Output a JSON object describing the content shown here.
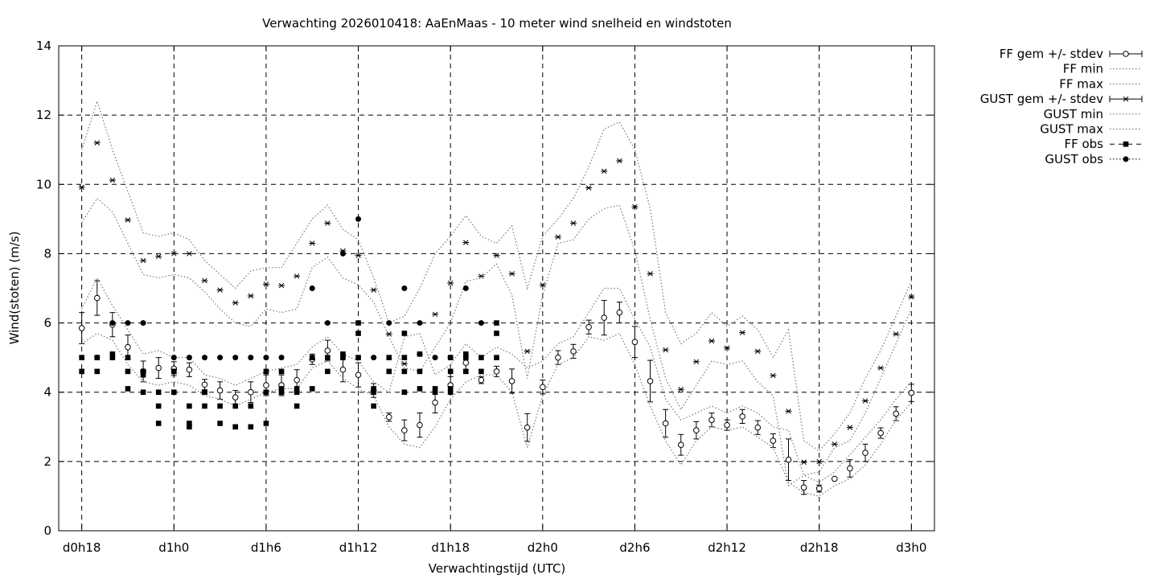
{
  "chart_data": {
    "type": "scatter",
    "title": "Verwachting 2026010418: AaEnMaas - 10 meter wind snelheid en windstoten",
    "xlabel": "Verwachtingstijd (UTC)",
    "ylabel": "Wind(stoten) (m/s)",
    "ylim": [
      0,
      14
    ],
    "xlim": [
      -1.5,
      55.5
    ],
    "yticks": [
      0,
      2,
      4,
      6,
      8,
      10,
      12,
      14
    ],
    "xticks": [
      {
        "x": 0,
        "label": "d0h18"
      },
      {
        "x": 6,
        "label": "d1h0"
      },
      {
        "x": 12,
        "label": "d1h6"
      },
      {
        "x": 18,
        "label": "d1h12"
      },
      {
        "x": 24,
        "label": "d1h18"
      },
      {
        "x": 30,
        "label": "d2h0"
      },
      {
        "x": 36,
        "label": "d2h6"
      },
      {
        "x": 42,
        "label": "d2h12"
      },
      {
        "x": 48,
        "label": "d2h18"
      },
      {
        "x": 54,
        "label": "d3h0"
      }
    ],
    "grid": true,
    "legend_position": "outside-right",
    "series": [
      {
        "name": "FF gem +/- stdev",
        "style": "errorbar-circle",
        "x": [
          0,
          1,
          2,
          3,
          4,
          5,
          6,
          7,
          8,
          9,
          10,
          11,
          12,
          13,
          14,
          15,
          16,
          17,
          18,
          19,
          20,
          21,
          22,
          23,
          24,
          25,
          26,
          27,
          28,
          29,
          30,
          31,
          32,
          33,
          34,
          35,
          36,
          37,
          38,
          39,
          40,
          41,
          42,
          43,
          44,
          45,
          46,
          47,
          48,
          49,
          50,
          51,
          52,
          53,
          54
        ],
        "y": [
          5.85,
          6.72,
          5.95,
          5.3,
          4.6,
          4.7,
          4.68,
          4.65,
          4.22,
          4.05,
          3.85,
          4.0,
          4.2,
          4.2,
          4.35,
          4.95,
          5.2,
          4.65,
          4.5,
          4.05,
          3.28,
          2.9,
          3.05,
          3.7,
          4.2,
          4.85,
          4.35,
          4.6,
          4.32,
          2.98,
          4.15,
          5.0,
          5.18,
          5.88,
          6.15,
          6.3,
          5.45,
          4.32,
          3.1,
          2.48,
          2.9,
          3.2,
          3.05,
          3.3,
          2.98,
          2.6,
          2.05,
          1.25,
          1.22,
          1.5,
          1.8,
          2.25,
          2.82,
          3.38,
          3.98
        ],
        "err": [
          0.45,
          0.5,
          0.35,
          0.35,
          0.3,
          0.3,
          0.2,
          0.2,
          0.15,
          0.25,
          0.2,
          0.3,
          0.3,
          0.3,
          0.3,
          0.15,
          0.3,
          0.35,
          0.35,
          0.2,
          0.12,
          0.3,
          0.35,
          0.3,
          0.25,
          0.2,
          0.1,
          0.15,
          0.35,
          0.4,
          0.2,
          0.2,
          0.2,
          0.2,
          0.5,
          0.3,
          0.45,
          0.6,
          0.4,
          0.3,
          0.25,
          0.2,
          0.15,
          0.2,
          0.2,
          0.2,
          0.6,
          0.2,
          0.1,
          0.0,
          0.25,
          0.25,
          0.15,
          0.2,
          0.25
        ]
      },
      {
        "name": "FF min",
        "style": "line",
        "x": [
          0,
          1,
          2,
          3,
          4,
          5,
          6,
          7,
          8,
          9,
          10,
          11,
          12,
          13,
          14,
          15,
          16,
          17,
          18,
          19,
          20,
          21,
          22,
          23,
          24,
          25,
          26,
          27,
          28,
          29,
          30,
          31,
          32,
          33,
          34,
          35,
          36,
          37,
          38,
          39,
          40,
          41,
          42,
          43,
          44,
          45,
          46,
          47,
          48,
          49,
          50,
          51,
          52,
          53,
          54
        ],
        "y": [
          5.4,
          5.7,
          5.5,
          4.8,
          4.3,
          4.2,
          4.3,
          4.2,
          3.9,
          3.8,
          3.6,
          3.8,
          4.0,
          4.1,
          4.1,
          4.7,
          4.9,
          4.4,
          4.1,
          3.9,
          3.0,
          2.5,
          2.4,
          3.0,
          3.8,
          4.3,
          4.5,
          4.5,
          4.0,
          2.4,
          3.9,
          4.8,
          5.0,
          5.6,
          5.5,
          5.7,
          4.8,
          3.6,
          2.6,
          1.9,
          2.6,
          3.0,
          2.9,
          3.0,
          2.7,
          2.4,
          1.4,
          1.1,
          1.0,
          1.3,
          1.5,
          1.9,
          2.5,
          3.2,
          3.7
        ]
      },
      {
        "name": "FF max",
        "style": "line",
        "x": [
          0,
          1,
          2,
          3,
          4,
          5,
          6,
          7,
          8,
          9,
          10,
          11,
          12,
          13,
          14,
          15,
          16,
          17,
          18,
          19,
          20,
          21,
          22,
          23,
          24,
          25,
          26,
          27,
          28,
          29,
          30,
          31,
          32,
          33,
          34,
          35,
          36,
          37,
          38,
          39,
          40,
          41,
          42,
          43,
          44,
          45,
          46,
          47,
          48,
          49,
          50,
          51,
          52,
          53,
          54
        ],
        "y": [
          6.4,
          7.3,
          6.5,
          5.8,
          5.1,
          5.2,
          5.0,
          5.0,
          4.5,
          4.4,
          4.2,
          4.4,
          4.6,
          4.7,
          4.8,
          5.3,
          5.6,
          5.1,
          4.9,
          4.3,
          4.0,
          5.6,
          5.7,
          4.5,
          4.8,
          5.4,
          5.0,
          5.3,
          5.1,
          4.7,
          4.9,
          5.4,
          5.6,
          6.3,
          7.0,
          7.0,
          6.1,
          5.3,
          3.8,
          3.2,
          3.4,
          3.6,
          3.4,
          3.6,
          3.4,
          3.0,
          2.9,
          1.6,
          1.4,
          1.7,
          2.2,
          2.7,
          3.2,
          3.8,
          4.3
        ]
      },
      {
        "name": "GUST gem +/- stdev",
        "style": "errorbar-star",
        "x": [
          0,
          1,
          2,
          3,
          4,
          5,
          6,
          7,
          8,
          9,
          10,
          11,
          12,
          13,
          14,
          15,
          16,
          17,
          18,
          19,
          20,
          21,
          22,
          23,
          24,
          25,
          26,
          27,
          28,
          29,
          30,
          31,
          32,
          33,
          34,
          35,
          36,
          37,
          38,
          39,
          40,
          41,
          42,
          43,
          44,
          45,
          46,
          47,
          48,
          49,
          50,
          51,
          52,
          53,
          54
        ],
        "y": [
          9.92,
          11.2,
          10.12,
          8.97,
          7.8,
          7.92,
          8.0,
          8.0,
          7.22,
          6.95,
          6.58,
          6.78,
          7.12,
          7.08,
          7.35,
          8.3,
          8.88,
          8.08,
          7.95,
          6.95,
          5.68,
          4.82,
          5.1,
          6.25,
          7.15,
          8.32,
          7.35,
          7.95,
          7.42,
          5.18,
          7.1,
          8.48,
          8.88,
          9.9,
          10.38,
          10.68,
          9.35,
          7.42,
          5.22,
          4.08,
          4.88,
          5.48,
          5.28,
          5.72,
          5.18,
          4.48,
          3.45,
          1.98,
          2.0,
          2.5,
          2.98,
          3.75,
          4.7,
          5.68,
          6.75
        ]
      },
      {
        "name": "GUST min",
        "style": "line",
        "x": [
          0,
          1,
          2,
          3,
          4,
          5,
          6,
          7,
          8,
          9,
          10,
          11,
          12,
          13,
          14,
          15,
          16,
          17,
          18,
          19,
          20,
          21,
          22,
          23,
          24,
          25,
          26,
          27,
          28,
          29,
          30,
          31,
          32,
          33,
          34,
          35,
          36,
          37,
          38,
          39,
          40,
          41,
          42,
          43,
          44,
          45,
          46,
          47,
          48,
          49,
          50,
          51,
          52,
          53,
          54
        ],
        "y": [
          8.9,
          9.6,
          9.2,
          8.3,
          7.4,
          7.3,
          7.4,
          7.3,
          6.9,
          6.4,
          6.0,
          5.9,
          6.4,
          6.3,
          6.4,
          7.6,
          7.9,
          7.3,
          7.1,
          6.6,
          5.6,
          4.7,
          4.6,
          5.3,
          6.0,
          7.2,
          7.3,
          7.7,
          6.8,
          4.4,
          6.8,
          8.3,
          8.4,
          9.0,
          9.3,
          9.4,
          8.1,
          6.1,
          4.4,
          3.5,
          4.2,
          4.9,
          4.8,
          4.9,
          4.3,
          3.9,
          1.3,
          1.6,
          1.7,
          2.4,
          2.6,
          3.4,
          4.4,
          5.4,
          6.4
        ]
      },
      {
        "name": "GUST max",
        "style": "line",
        "x": [
          0,
          1,
          2,
          3,
          4,
          5,
          6,
          7,
          8,
          9,
          10,
          11,
          12,
          13,
          14,
          15,
          16,
          17,
          18,
          19,
          20,
          21,
          22,
          23,
          24,
          25,
          26,
          27,
          28,
          29,
          30,
          31,
          32,
          33,
          34,
          35,
          36,
          37,
          38,
          39,
          40,
          41,
          42,
          43,
          44,
          45,
          46,
          47,
          48,
          49,
          50,
          51,
          52,
          53,
          54
        ],
        "y": [
          11.0,
          12.4,
          11.0,
          9.8,
          8.6,
          8.5,
          8.6,
          8.4,
          7.8,
          7.4,
          7.0,
          7.5,
          7.6,
          7.6,
          8.3,
          9.0,
          9.4,
          8.7,
          8.4,
          7.3,
          6.0,
          6.2,
          7.0,
          8.0,
          8.5,
          9.1,
          8.5,
          8.3,
          8.8,
          7.0,
          8.5,
          9.0,
          9.6,
          10.5,
          11.6,
          11.8,
          11.0,
          9.3,
          6.3,
          5.4,
          5.7,
          6.3,
          5.9,
          6.2,
          5.8,
          5.0,
          5.8,
          2.6,
          2.3,
          2.8,
          3.4,
          4.4,
          5.2,
          6.2,
          7.2
        ]
      },
      {
        "name": "FF obs",
        "style": "square",
        "x": [
          0,
          0,
          1,
          1,
          2,
          2,
          3,
          3,
          3,
          4,
          4,
          4,
          5,
          5,
          5,
          6,
          6,
          6,
          7,
          7,
          7,
          8,
          8,
          8,
          9,
          9,
          10,
          10,
          11,
          11,
          12,
          12,
          12,
          13,
          13,
          13,
          14,
          14,
          14,
          15,
          15,
          16,
          16,
          17,
          17,
          18,
          18,
          18,
          19,
          19,
          19,
          20,
          20,
          21,
          21,
          21,
          21,
          22,
          22,
          22,
          23,
          23,
          24,
          24,
          24,
          24,
          25,
          25,
          25,
          26,
          26,
          27,
          27,
          27
        ],
        "y": [
          5.0,
          4.6,
          5.0,
          4.6,
          5.1,
          5.0,
          5.0,
          4.6,
          4.1,
          4.6,
          4.5,
          4.0,
          3.6,
          3.1,
          4.0,
          4.6,
          4.0,
          4.6,
          3.6,
          3.1,
          3.0,
          4.0,
          3.6,
          4.0,
          3.6,
          3.1,
          3.6,
          3.0,
          3.6,
          3.0,
          4.6,
          4.0,
          3.1,
          4.6,
          4.0,
          4.1,
          4.1,
          4.0,
          3.6,
          4.1,
          5.0,
          5.0,
          4.6,
          5.0,
          5.1,
          6.0,
          5.7,
          5.0,
          4.1,
          4.0,
          3.6,
          5.0,
          4.6,
          5.7,
          5.0,
          4.6,
          4.0,
          5.1,
          4.6,
          4.1,
          4.1,
          4.0,
          4.6,
          4.1,
          4.0,
          5.0,
          5.1,
          5.0,
          4.6,
          5.0,
          4.6,
          6.0,
          5.7,
          5.0
        ]
      },
      {
        "name": "GUST obs",
        "style": "dot",
        "x": [
          1,
          2,
          3,
          4,
          6,
          7,
          8,
          9,
          10,
          11,
          12,
          13,
          15,
          16,
          17,
          18,
          19,
          20,
          21,
          22,
          23,
          24,
          25,
          26
        ],
        "y": [
          5.0,
          6.0,
          6.0,
          6.0,
          5.0,
          5.0,
          5.0,
          5.0,
          5.0,
          5.0,
          5.0,
          5.0,
          7.0,
          6.0,
          8.0,
          9.0,
          5.0,
          6.0,
          7.0,
          6.0,
          5.0,
          5.0,
          7.0,
          6.0
        ]
      }
    ]
  }
}
